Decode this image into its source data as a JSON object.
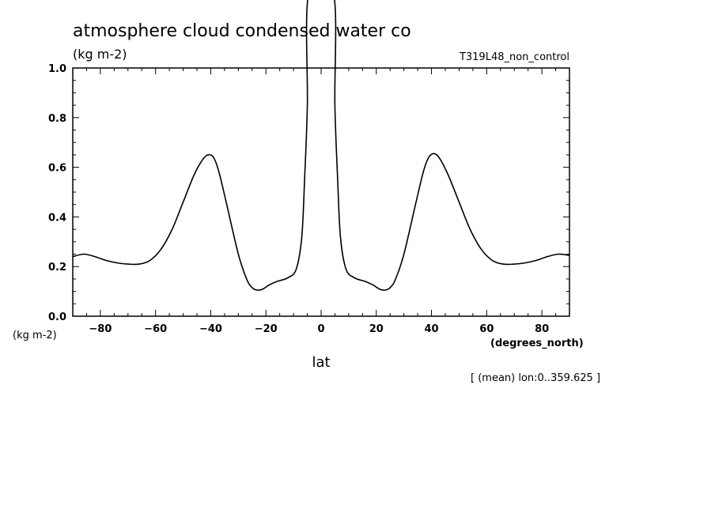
{
  "chart_data": {
    "type": "line",
    "title": "atmosphere cloud condensed water co",
    "ylabel_units_top": "(kg m-2)",
    "ylabel_units_bottom": "(kg m-2)",
    "experiment": "T319L48_non_control",
    "xlabel": "lat",
    "xlabel_units": "(degrees_north)",
    "footnote": "[ (mean) lon:0..359.625 ]",
    "xlim": [
      -90,
      90
    ],
    "ylim": [
      0.0,
      1.0
    ],
    "x_ticks": [
      -80,
      -60,
      -40,
      -20,
      0,
      20,
      40,
      60,
      80
    ],
    "y_ticks": [
      "0.0",
      "0.2",
      "0.4",
      "0.6",
      "0.8",
      "1.0"
    ],
    "grid": false,
    "series": [
      {
        "x": [
          -90,
          -86,
          -82,
          -78,
          -74,
          -70,
          -66,
          -62,
          -58,
          -54,
          -50,
          -46,
          -43,
          -41,
          -39,
          -37,
          -34,
          -30,
          -27,
          -25,
          -23,
          -21,
          -19,
          -16,
          -12,
          -9,
          -7,
          -6,
          -5,
          -4.5,
          4.5,
          5,
          6,
          7,
          9,
          12,
          16,
          19,
          21,
          23,
          25,
          27,
          30,
          34,
          37,
          39,
          41,
          43,
          46,
          50,
          54,
          58,
          62,
          66,
          70,
          74,
          78,
          82,
          86,
          90
        ],
        "y": [
          0.24,
          0.25,
          0.24,
          0.225,
          0.215,
          0.21,
          0.21,
          0.225,
          0.27,
          0.35,
          0.46,
          0.57,
          0.63,
          0.65,
          0.64,
          0.58,
          0.44,
          0.25,
          0.15,
          0.115,
          0.105,
          0.11,
          0.125,
          0.14,
          0.155,
          0.19,
          0.32,
          0.55,
          0.85,
          1.3,
          1.3,
          0.85,
          0.55,
          0.32,
          0.19,
          0.155,
          0.14,
          0.125,
          0.11,
          0.105,
          0.115,
          0.15,
          0.25,
          0.44,
          0.58,
          0.64,
          0.655,
          0.635,
          0.57,
          0.46,
          0.35,
          0.27,
          0.225,
          0.21,
          0.21,
          0.215,
          0.225,
          0.24,
          0.25,
          0.245
        ]
      }
    ]
  }
}
